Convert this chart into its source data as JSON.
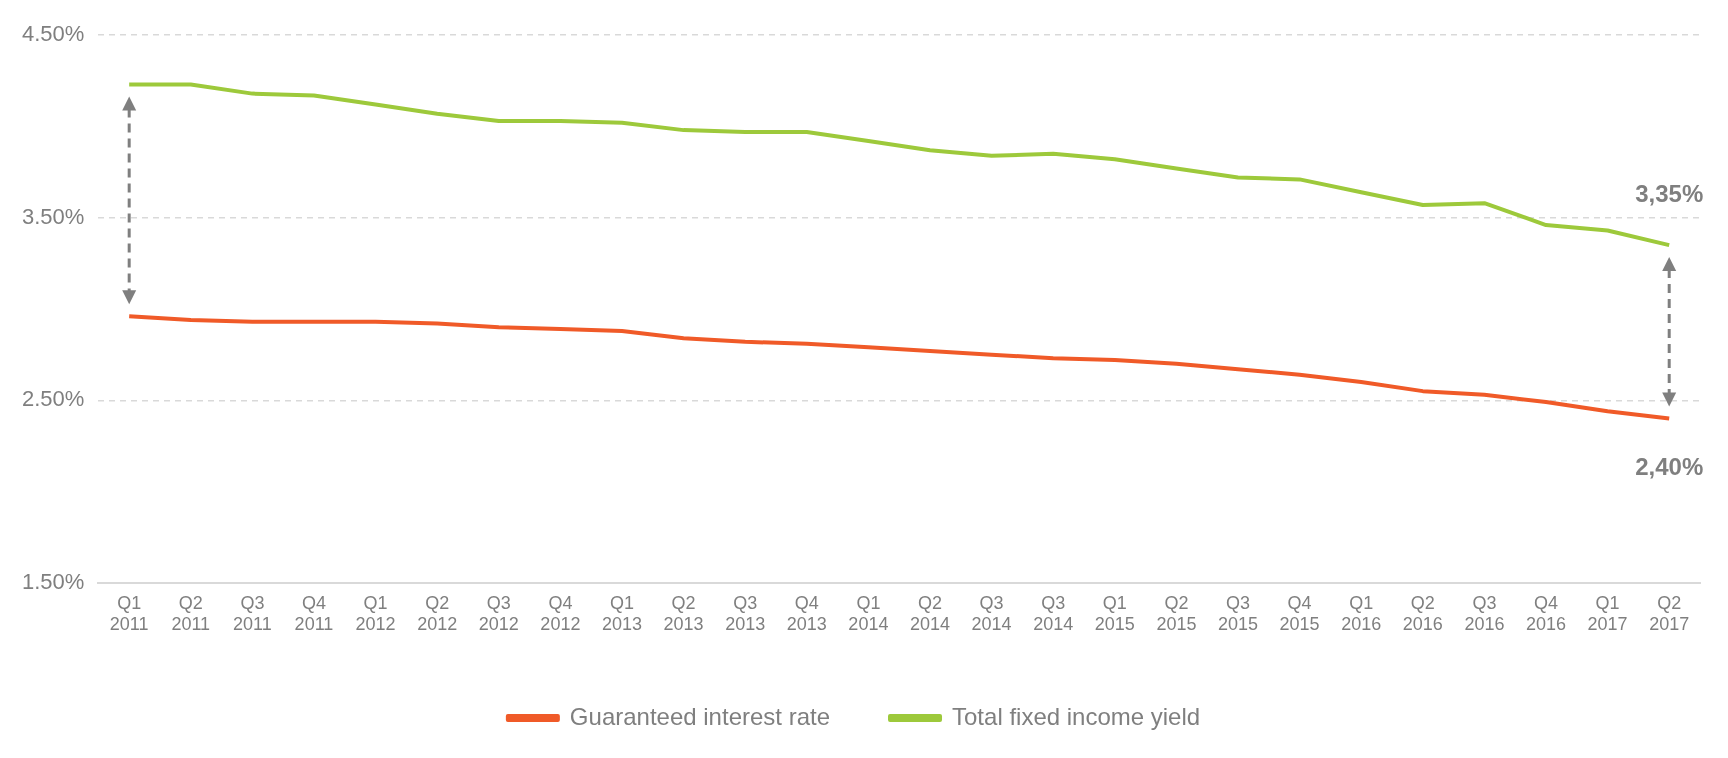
{
  "chart_data": {
    "type": "line",
    "categories": [
      "Q1 2011",
      "Q2 2011",
      "Q3 2011",
      "Q4 2011",
      "Q1 2012",
      "Q2 2012",
      "Q3 2012",
      "Q4 2012",
      "Q1 2013",
      "Q2 2013",
      "Q3 2013",
      "Q4 2013",
      "Q1 2014",
      "Q2 2014",
      "Q3 2014",
      "Q3 2014",
      "Q1 2015",
      "Q2 2015",
      "Q3 2015",
      "Q4 2015",
      "Q1 2016",
      "Q2 2016",
      "Q3 2016",
      "Q4 2016",
      "Q1 2017",
      "Q2 2017"
    ],
    "series": [
      {
        "name": "Guaranteed interest rate",
        "color": "#f05a28",
        "values": [
          2.96,
          2.94,
          2.93,
          2.93,
          2.93,
          2.92,
          2.9,
          2.89,
          2.88,
          2.84,
          2.82,
          2.81,
          2.79,
          2.77,
          2.75,
          2.73,
          2.72,
          2.7,
          2.67,
          2.64,
          2.6,
          2.55,
          2.53,
          2.49,
          2.44,
          2.4
        ]
      },
      {
        "name": "Total fixed income yield",
        "color": "#9dc93b",
        "values": [
          4.23,
          4.23,
          4.18,
          4.17,
          4.12,
          4.07,
          4.03,
          4.03,
          4.02,
          3.98,
          3.97,
          3.97,
          3.92,
          3.87,
          3.84,
          3.85,
          3.82,
          3.77,
          3.72,
          3.71,
          3.64,
          3.57,
          3.58,
          3.46,
          3.43,
          3.35
        ]
      }
    ],
    "ylim": [
      1.5,
      4.5
    ],
    "yticks": [
      {
        "value": 1.5,
        "label": "1.50%"
      },
      {
        "value": 2.5,
        "label": "2.50%"
      },
      {
        "value": 3.5,
        "label": "3.50%"
      },
      {
        "value": 4.5,
        "label": "4.50%"
      }
    ],
    "grid": "y",
    "legend": "bottom",
    "marker": "none",
    "line_style": "solid",
    "annotations": [
      {
        "text": "3,35%",
        "x": "Q2 2017",
        "y": 3.35
      },
      {
        "text": "2,40%",
        "x": "Q2 2017",
        "y": 2.4
      }
    ]
  }
}
